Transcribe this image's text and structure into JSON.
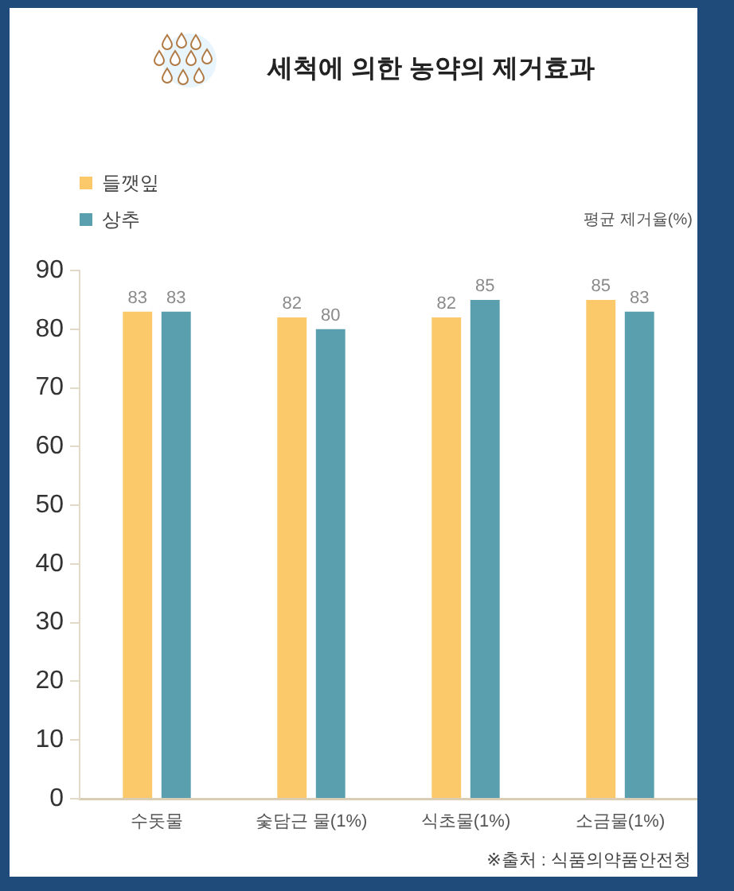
{
  "chart_data": {
    "type": "bar",
    "title": "세척에 의한 농약의 제거효과",
    "ylabel": "평균 제거율(%)",
    "categories": [
      "수돗물",
      "숯담근 물(1%)",
      "식초물(1%)",
      "소금물(1%)"
    ],
    "series": [
      {
        "name": "들깻잎",
        "color": "#fbc86a",
        "values": [
          83,
          82,
          82,
          85
        ]
      },
      {
        "name": "상추",
        "color": "#5a9fae",
        "values": [
          83,
          80,
          85,
          83
        ]
      }
    ],
    "ylim": [
      0,
      90
    ],
    "yticks": [
      0,
      10,
      20,
      30,
      40,
      50,
      60,
      70,
      80,
      90
    ],
    "legend": "top left",
    "data_labels": true,
    "annotations": [
      "※출처 : 식품의약품안전청"
    ]
  }
}
